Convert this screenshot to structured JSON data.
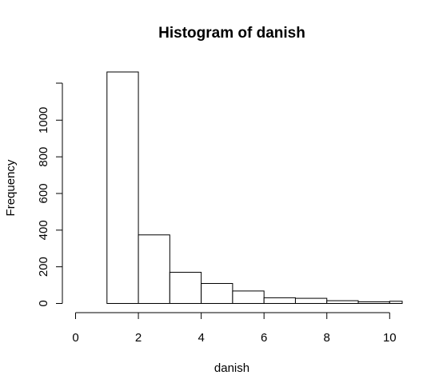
{
  "chart_data": {
    "type": "bar",
    "title": "Histogram of danish",
    "xlabel": "danish",
    "ylabel": "Frequency",
    "bin_edges": [
      1,
      2,
      3,
      4,
      5,
      6,
      7,
      8,
      9,
      10,
      11
    ],
    "values": [
      1263,
      374,
      170,
      109,
      68,
      31,
      28,
      15,
      9,
      12
    ],
    "xlim": [
      0,
      10.4
    ],
    "ylim": [
      0,
      1263
    ],
    "x_ticks": [
      0,
      2,
      4,
      6,
      8,
      10
    ],
    "y_ticks": [
      0,
      200,
      400,
      600,
      800,
      1000
    ],
    "grid": false,
    "legend": "none"
  }
}
